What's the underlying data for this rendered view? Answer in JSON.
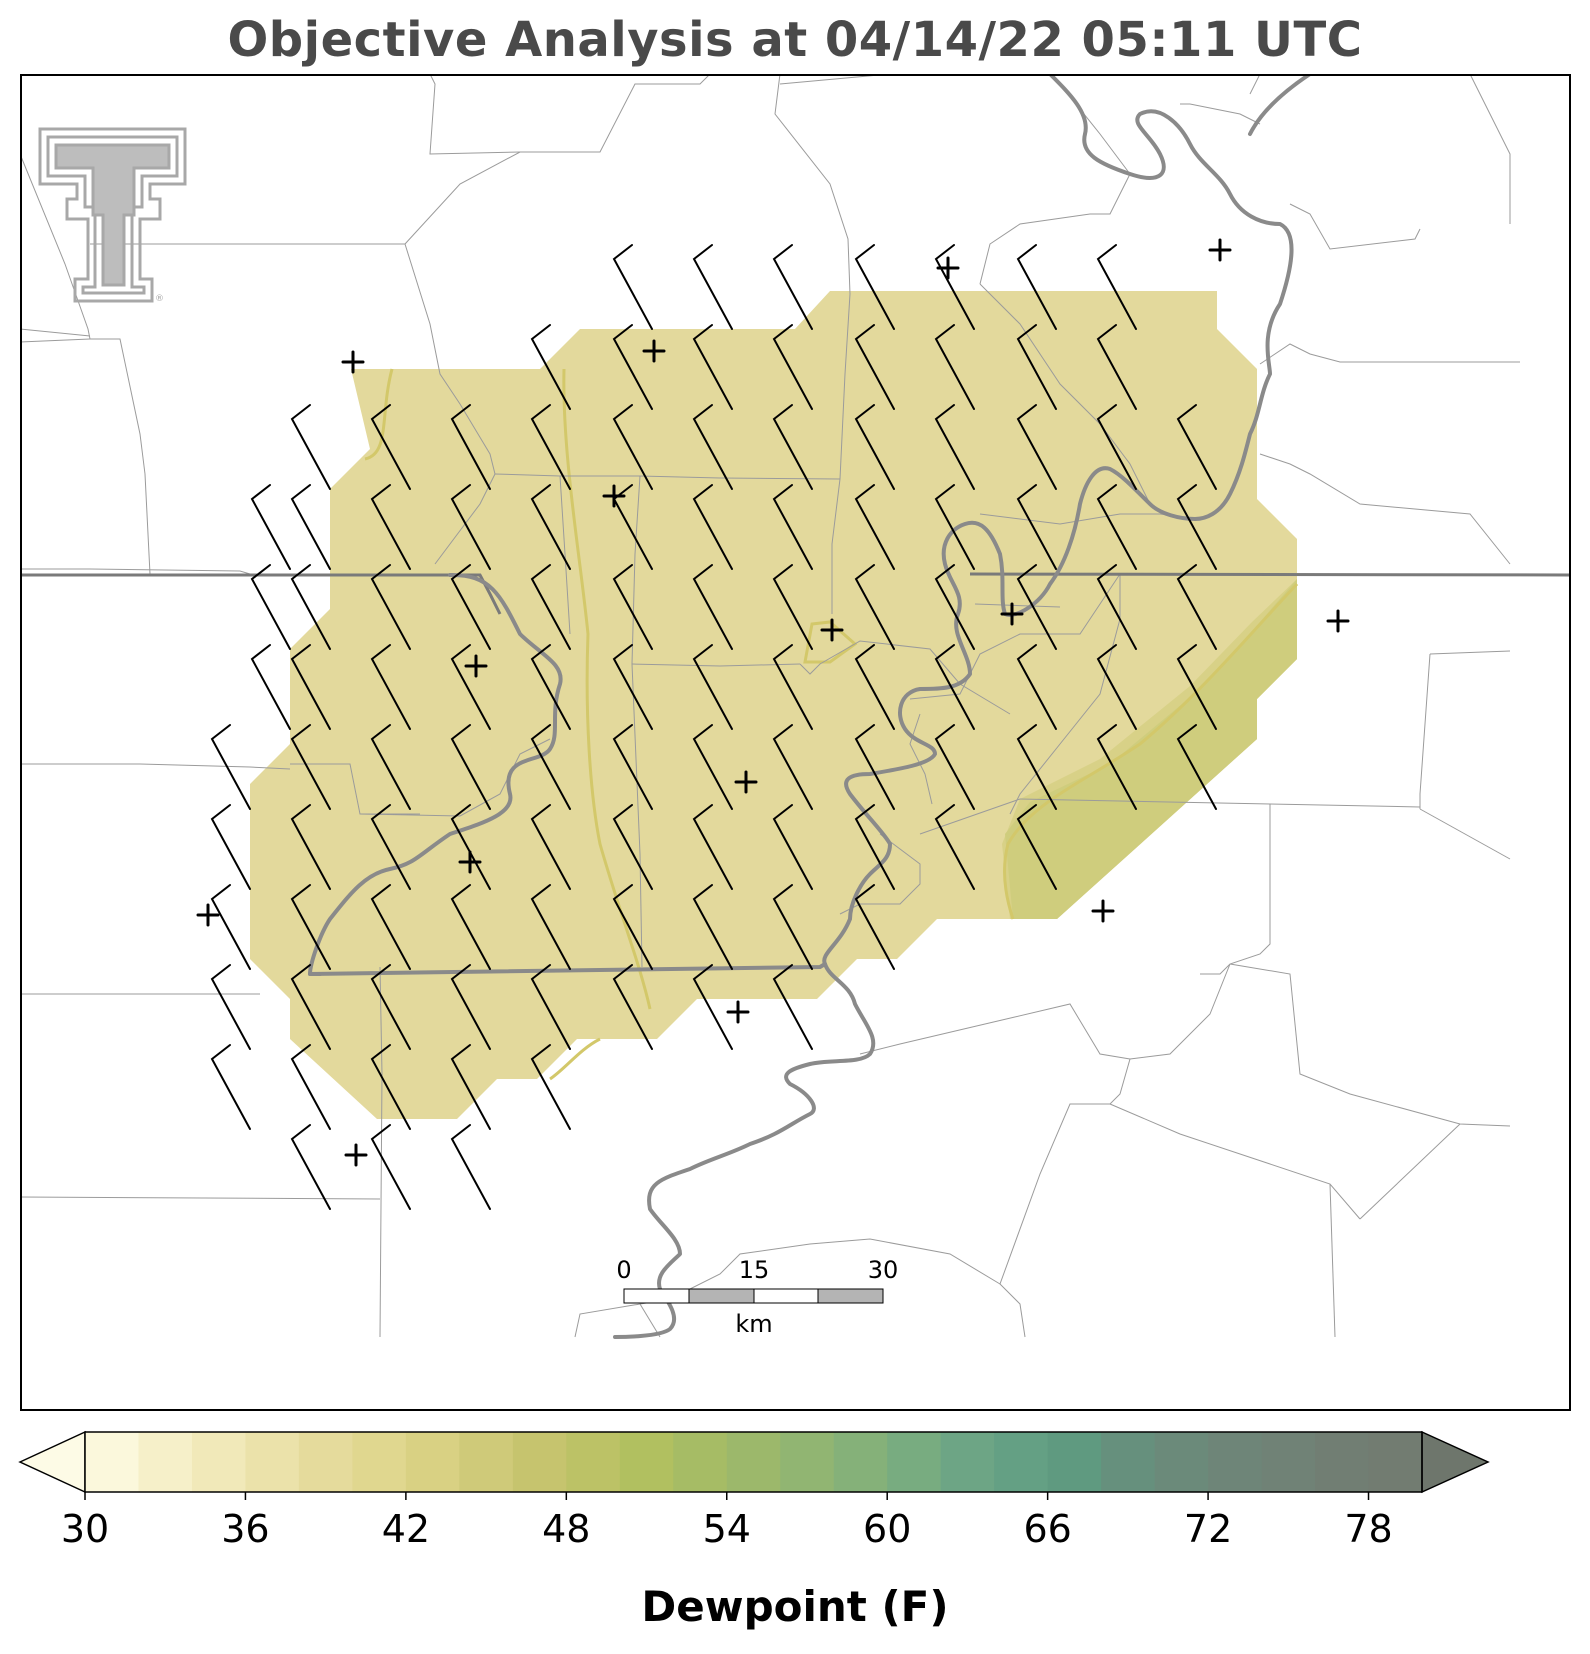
{
  "title": "Objective Analysis at 04/14/22 05:11 UTC",
  "scale_bar": {
    "ticks": [
      "0",
      "15",
      "30"
    ],
    "unit": "km"
  },
  "colorbar": {
    "label": "Dewpoint (F)",
    "tick_labels": [
      "30",
      "36",
      "42",
      "48",
      "54",
      "60",
      "66",
      "72",
      "78"
    ],
    "levels": [
      30,
      32,
      34,
      36,
      38,
      40,
      42,
      44,
      46,
      48,
      50,
      52,
      54,
      56,
      58,
      60,
      62,
      64,
      66,
      68,
      70,
      72,
      74,
      76,
      78,
      80
    ],
    "colors": [
      "#fbf8dc",
      "#f6f0c9",
      "#f1e9b9",
      "#ebe2aa",
      "#e5db9c",
      "#e0d78f",
      "#d9d183",
      "#cfca79",
      "#c6c46e",
      "#bcc266",
      "#b1c060",
      "#a6bc65",
      "#9cb86b",
      "#91b572",
      "#85b179",
      "#78ac80",
      "#6da585",
      "#64a084",
      "#5f9a80",
      "#66907d",
      "#6b8a7a",
      "#6e8578",
      "#708276",
      "#717e73",
      "#727c71"
    ],
    "under_color": "#fdfbe6",
    "over_color": "#6e766c"
  },
  "field": {
    "dominant_color": "#e3d99c",
    "east_color": "#d8d187",
    "southeast_color": "#cfcd7d",
    "contour_color": "#d3c86a"
  },
  "logo": {
    "name": "texas-tech-double-t-logo",
    "color": "#a8a8a8"
  },
  "station_count": 14,
  "barb_color": "#000000"
}
